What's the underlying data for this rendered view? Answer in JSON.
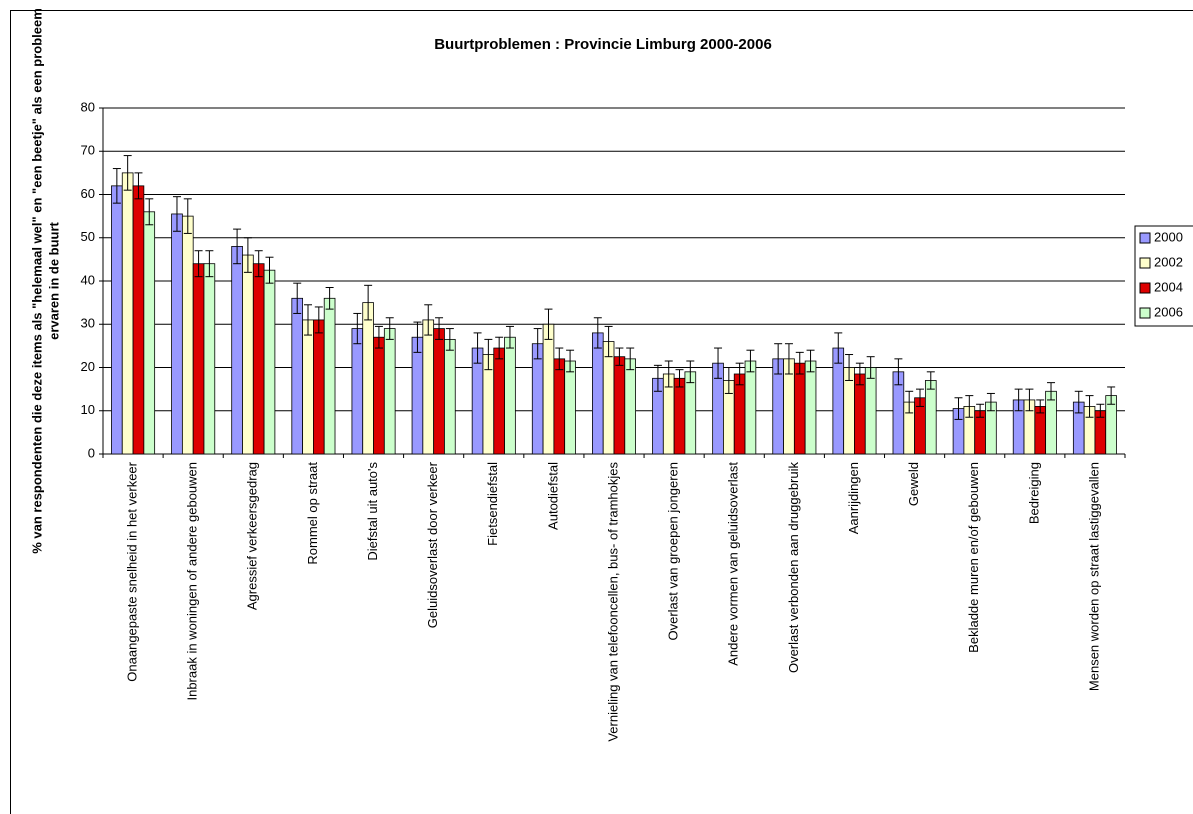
{
  "chart_data": {
    "type": "bar",
    "title": "Buurtproblemen : Provincie Limburg 2000-2006",
    "ylabel": [
      "% van respondenten die deze items als \"helemaal wel\" en \"een beetje\" als een probleem",
      "ervaren in de buurt"
    ],
    "categories": [
      "Onaangepaste snelheid in het verkeer",
      "Inbraak in woningen of andere gebouwen",
      "Agressief verkeersgedrag",
      "Rommel op straat",
      "Diefstal uit auto's",
      "Geluidsoverlast door verkeer",
      "Fietsendiefstal",
      "Autodiefstal",
      "Vernieling van telefooncellen, bus- of tramhokjes",
      "Overlast van groepen jongeren",
      "Andere vormen van geluidsoverlast",
      "Overlast verbonden aan druggebruik",
      "Aanrijdingen",
      "Geweld",
      "Bekladde muren en/of gebouwen",
      "Bedreiging",
      "Mensen worden op straat lastiggevallen"
    ],
    "series": [
      {
        "name": "2000",
        "color": "#9999ff",
        "values": [
          62,
          55.5,
          48,
          36,
          29,
          27,
          24.5,
          25.5,
          28,
          17.5,
          21,
          22,
          24.5,
          19,
          10.5,
          12.5,
          12
        ],
        "errors": [
          4,
          4,
          4,
          3.5,
          3.5,
          3.5,
          3.5,
          3.5,
          3.5,
          3,
          3.5,
          3.5,
          3.5,
          3,
          2.5,
          2.5,
          2.5
        ]
      },
      {
        "name": "2002",
        "color": "#ffffcc",
        "values": [
          65,
          55,
          46,
          31,
          35,
          31,
          23,
          30,
          26,
          18.5,
          17,
          22,
          20,
          12,
          11,
          12.5,
          11
        ],
        "errors": [
          4,
          4,
          4,
          3.5,
          4,
          3.5,
          3.5,
          3.5,
          3.5,
          3,
          3,
          3.5,
          3,
          2.5,
          2.5,
          2.5,
          2.5
        ]
      },
      {
        "name": "2004",
        "color": "#dd0000",
        "values": [
          62,
          44,
          44,
          31,
          27,
          29,
          24.5,
          22,
          22.5,
          17.5,
          18.5,
          21,
          18.5,
          13,
          10,
          11,
          10
        ],
        "errors": [
          3,
          3,
          3,
          3,
          2.5,
          2.5,
          2.5,
          2.5,
          2,
          2,
          2.5,
          2.5,
          2.5,
          2,
          1.5,
          1.5,
          1.5
        ]
      },
      {
        "name": "2006",
        "color": "#ccffcc",
        "values": [
          56,
          44,
          42.5,
          36,
          29,
          26.5,
          27,
          21.5,
          22,
          19,
          21.5,
          21.5,
          20,
          17,
          12,
          14.5,
          13.5
        ],
        "errors": [
          3,
          3,
          3,
          2.5,
          2.5,
          2.5,
          2.5,
          2.5,
          2.5,
          2.5,
          2.5,
          2.5,
          2.5,
          2,
          2,
          2,
          2
        ]
      }
    ],
    "ylim": [
      0,
      80
    ],
    "yticks": [
      0,
      10,
      20,
      30,
      40,
      50,
      60,
      70,
      80
    ],
    "grid": true,
    "legend": "right"
  }
}
